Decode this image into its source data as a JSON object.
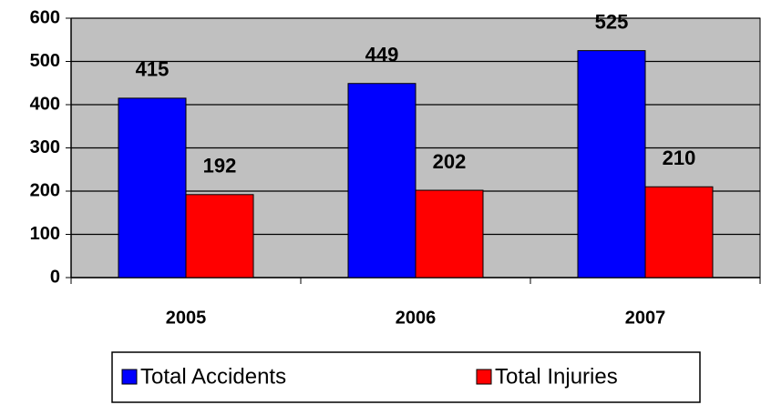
{
  "chart_data": {
    "type": "bar",
    "categories": [
      "2005",
      "2006",
      "2007"
    ],
    "series": [
      {
        "name": "Total Accidents",
        "color": "#0000ff",
        "values": [
          415,
          449,
          525
        ]
      },
      {
        "name": "Total Injuries",
        "color": "#ff0000",
        "values": [
          192,
          202,
          210
        ]
      }
    ],
    "ylim": [
      0,
      600
    ],
    "yticks": [
      0,
      100,
      200,
      300,
      400,
      500,
      600
    ],
    "grid": true,
    "legend": "bottom",
    "background": "#c0c0c0"
  }
}
